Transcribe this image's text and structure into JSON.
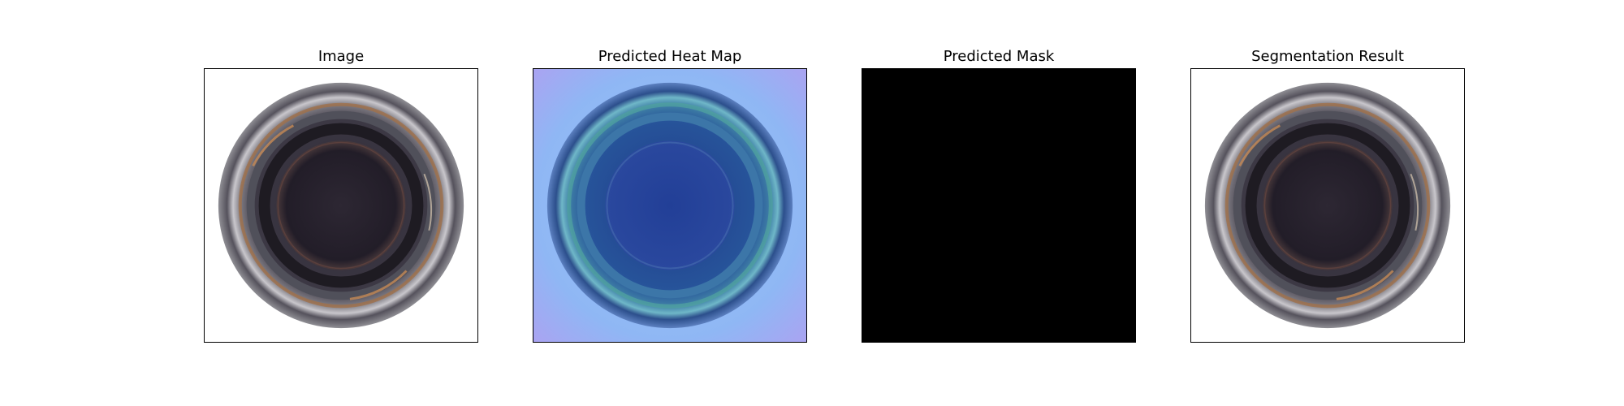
{
  "figure": {
    "panels": [
      {
        "title": "Image"
      },
      {
        "title": "Predicted Heat Map"
      },
      {
        "title": "Predicted Mask"
      },
      {
        "title": "Segmentation Result"
      }
    ]
  },
  "colors": {
    "mask_background": "#000000",
    "heatmap_background": "#9ab4f5",
    "bottle_dark": "#2a2430",
    "rim_highlight": "#b07a4e"
  }
}
